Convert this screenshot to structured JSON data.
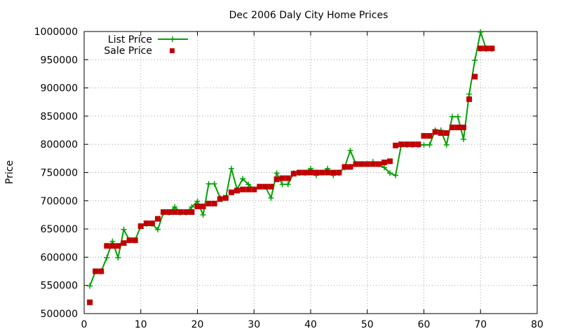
{
  "chart_data": {
    "type": "line",
    "title": "Dec 2006 Daly City Home Prices",
    "xlabel": "",
    "ylabel": "Price",
    "xlim": [
      0,
      80
    ],
    "ylim": [
      500000,
      1000000
    ],
    "xticks": [
      0,
      10,
      20,
      30,
      40,
      50,
      60,
      70,
      80
    ],
    "yticks": [
      500000,
      550000,
      600000,
      650000,
      700000,
      750000,
      800000,
      850000,
      900000,
      950000,
      1000000
    ],
    "grid": true,
    "legend_position": "top-left",
    "x": [
      1,
      2,
      3,
      4,
      5,
      6,
      7,
      8,
      9,
      10,
      11,
      12,
      13,
      14,
      15,
      16,
      17,
      18,
      19,
      20,
      21,
      22,
      23,
      24,
      25,
      26,
      27,
      28,
      29,
      30,
      31,
      32,
      33,
      34,
      35,
      36,
      37,
      38,
      39,
      40,
      41,
      42,
      43,
      44,
      45,
      46,
      47,
      48,
      49,
      50,
      51,
      52,
      53,
      54,
      55,
      56,
      57,
      58,
      59,
      60,
      61,
      62,
      63,
      64,
      65,
      66,
      67,
      68,
      69,
      70,
      71,
      72
    ],
    "series": [
      {
        "name": "List Price",
        "style": "line+cross",
        "color": "#00a000",
        "values": [
          549000,
          575000,
          575000,
          599000,
          628000,
          599000,
          649000,
          630000,
          630000,
          655000,
          659000,
          659000,
          649000,
          679000,
          679000,
          689000,
          679000,
          679000,
          689000,
          699000,
          675000,
          730000,
          730000,
          705000,
          705000,
          757000,
          720000,
          739000,
          729000,
          720000,
          725000,
          725000,
          705000,
          749000,
          729000,
          729000,
          749000,
          749000,
          749000,
          757000,
          745000,
          750000,
          757000,
          745000,
          749000,
          759000,
          789000,
          765000,
          765000,
          765000,
          769000,
          765000,
          759000,
          749000,
          745000,
          799000,
          799000,
          799000,
          799000,
          799000,
          799000,
          825000,
          825000,
          799000,
          849000,
          849000,
          809000,
          889000,
          949000,
          999000,
          969000,
          969000
        ]
      },
      {
        "name": "Sale Price",
        "style": "square",
        "color": "#c00000",
        "values": [
          520000,
          575000,
          575000,
          620000,
          620000,
          620000,
          625000,
          630000,
          630000,
          655000,
          660000,
          660000,
          668000,
          680000,
          680000,
          680000,
          680000,
          680000,
          680000,
          690000,
          690000,
          695000,
          695000,
          703000,
          705000,
          715000,
          718000,
          720000,
          720000,
          720000,
          725000,
          725000,
          725000,
          738000,
          740000,
          740000,
          748000,
          750000,
          750000,
          750000,
          750000,
          750000,
          750000,
          750000,
          750000,
          760000,
          760000,
          765000,
          765000,
          765000,
          765000,
          765000,
          768000,
          770000,
          798000,
          800000,
          800000,
          800000,
          800000,
          815000,
          815000,
          822000,
          820000,
          820000,
          830000,
          830000,
          830000,
          880000,
          920000,
          970000,
          970000,
          970000
        ]
      }
    ]
  }
}
